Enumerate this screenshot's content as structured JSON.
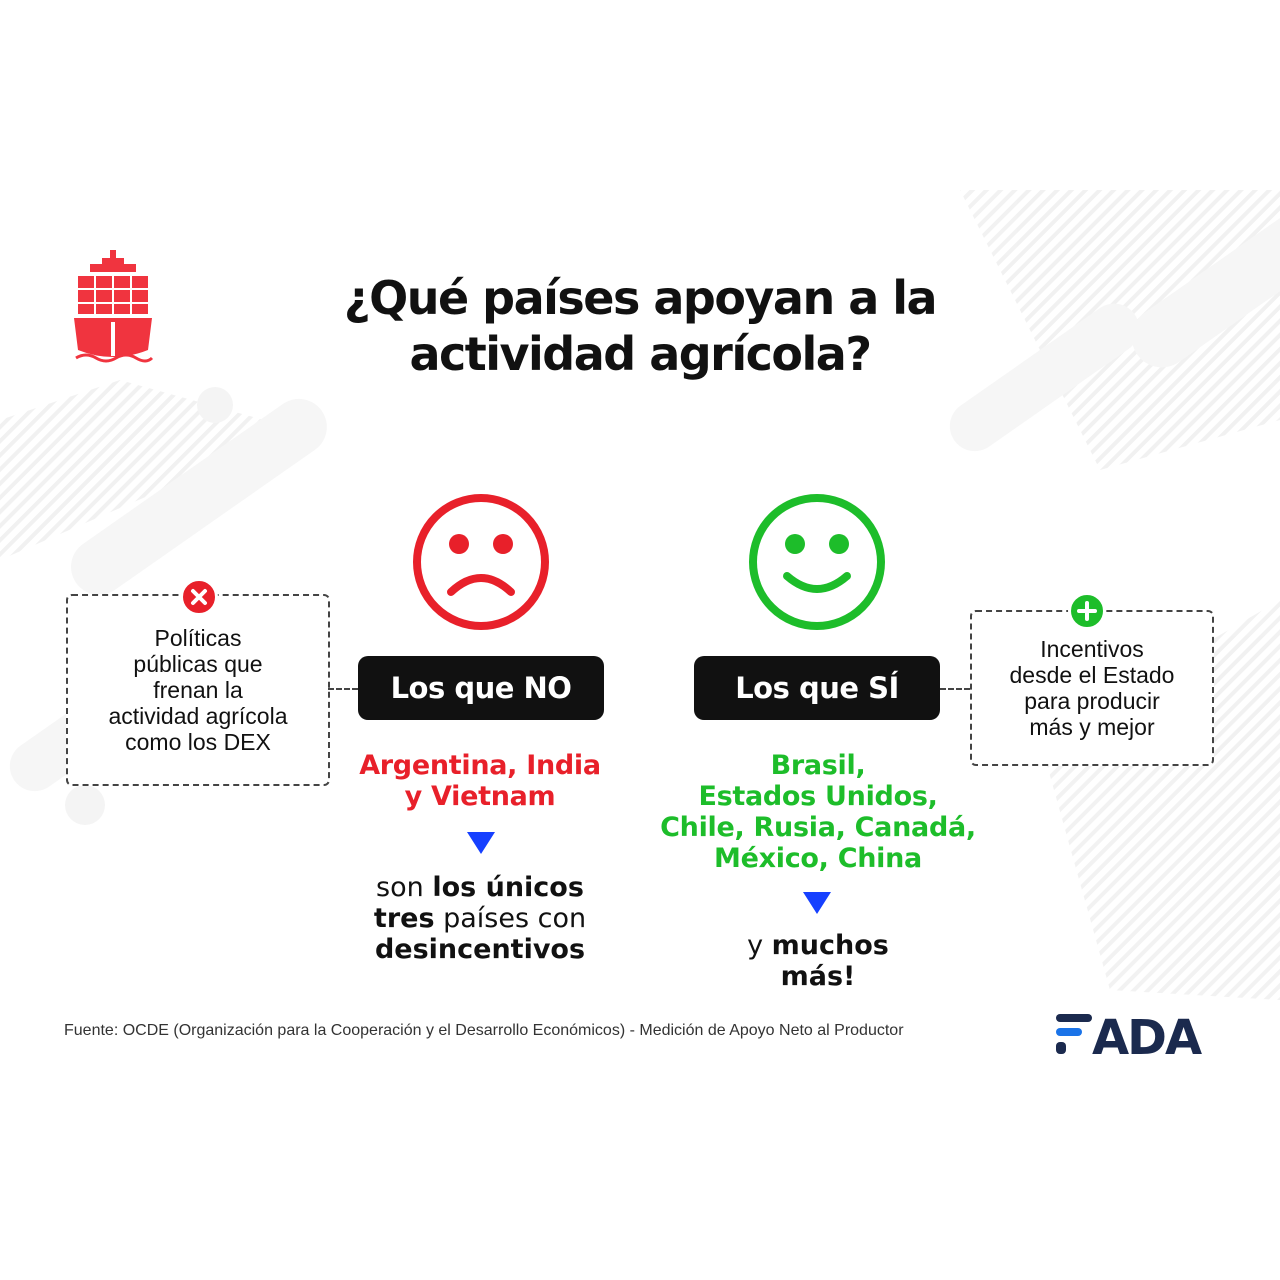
{
  "title": {
    "line1": "¿Qué países apoyan a la",
    "line2": "actividad agrícola?"
  },
  "left_box": {
    "lines": [
      "Políticas",
      "públicas que",
      "frenan la",
      "actividad agrícola",
      "como los DEX"
    ],
    "badge_icon": "close-icon",
    "badge_color": "#e8202a"
  },
  "right_box": {
    "lines": [
      "Incentivos",
      "desde el Estado",
      "para producir",
      "más y mejor"
    ],
    "badge_icon": "plus-icon",
    "badge_color": "#1dbd2a"
  },
  "no_column": {
    "face_icon": "sad-face-icon",
    "face_color": "#e8202a",
    "pill_label": "Los que NO",
    "countries": [
      "Argentina, India",
      "y Vietnam"
    ],
    "country_color": "#e8202a",
    "note": {
      "l1_plain": "son ",
      "l1_bold": "los únicos",
      "l2_bold": "tres",
      "l2_plain": " países con",
      "l3_bold": "desincentivos"
    }
  },
  "si_column": {
    "face_icon": "happy-face-icon",
    "face_color": "#1dbd2a",
    "pill_label": "Los que SÍ",
    "countries": [
      "Brasil,",
      "Estados Unidos,",
      "Chile, Rusia, Canadá,",
      "México, China"
    ],
    "country_color": "#1dbd2a",
    "note": {
      "l1_plain": "y ",
      "l1_bold": "muchos",
      "l2_bold": "más!"
    }
  },
  "arrow_color": "#1640ff",
  "source": "Fuente: OCDE (Organización para la Cooperación y el Desarrollo Económicos) - Medición de Apoyo Neto al Productor",
  "logo": {
    "text": "FADA",
    "color": "#1b2a4e",
    "accent": "#1a73e8"
  },
  "ship_icon": "cargo-ship-icon",
  "ship_color": "#f0343f"
}
